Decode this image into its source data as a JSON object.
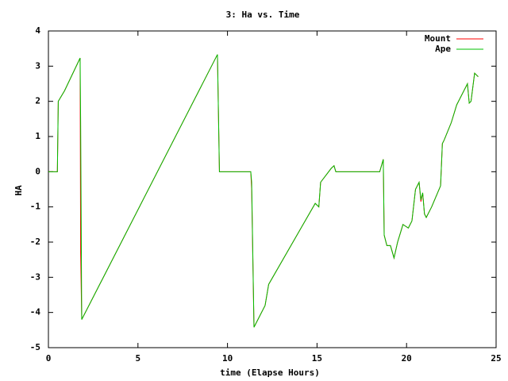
{
  "chart_data": {
    "type": "line",
    "title": "3: Ha vs. Time",
    "xlabel": "time (Elapse Hours)",
    "ylabel": "HA",
    "x": [
      0,
      0.5,
      0.55,
      0.9,
      1.77,
      1.8,
      1.86,
      9.44,
      9.55,
      11.3,
      11.35,
      11.48,
      12.1,
      12.3,
      14.9,
      15.1,
      15.2,
      15.8,
      15.95,
      16.05,
      18.5,
      18.7,
      18.75,
      18.9,
      19.1,
      19.3,
      19.5,
      19.8,
      20.1,
      20.3,
      20.5,
      20.7,
      20.8,
      20.9,
      21.0,
      21.1,
      21.4,
      21.9,
      22.0,
      22.1,
      22.5,
      22.8,
      23.4,
      23.5,
      23.6,
      23.8,
      24.0
    ],
    "series": [
      {
        "name": "Mount",
        "color": "#ff0000",
        "values": [
          0,
          0,
          2.0,
          2.3,
          3.23,
          -2.3,
          -4.2,
          3.33,
          0,
          0,
          -0.5,
          -4.42,
          -3.8,
          -3.2,
          -0.9,
          -1.0,
          -0.3,
          0.1,
          0.17,
          0,
          0,
          0.35,
          -1.8,
          -2.1,
          -2.1,
          -2.45,
          -2.0,
          -1.5,
          -1.6,
          -1.4,
          -0.5,
          -0.3,
          -0.85,
          -0.6,
          -1.2,
          -1.3,
          -1.0,
          -0.4,
          0.8,
          0.9,
          1.4,
          1.9,
          2.5,
          1.95,
          2.0,
          2.8,
          2.7
        ]
      },
      {
        "name": "Ape",
        "color": "#00c000",
        "values": [
          0,
          0,
          2.0,
          2.3,
          3.23,
          1.4,
          -4.2,
          3.33,
          0,
          0,
          -0.3,
          -4.42,
          -3.8,
          -3.2,
          -0.9,
          -1.0,
          -0.3,
          0.1,
          0.17,
          0,
          0,
          0.35,
          -1.8,
          -2.1,
          -2.1,
          -2.45,
          -2.0,
          -1.5,
          -1.6,
          -1.4,
          -0.5,
          -0.3,
          -0.8,
          -0.6,
          -1.2,
          -1.3,
          -1.0,
          -0.4,
          0.8,
          0.9,
          1.4,
          1.9,
          2.5,
          1.95,
          2.0,
          2.8,
          2.7
        ]
      }
    ],
    "xlim": [
      0,
      25
    ],
    "xticks": [
      0,
      5,
      10,
      15,
      20,
      25
    ],
    "ylim": [
      -5,
      4
    ],
    "yticks": [
      -5,
      -4,
      -3,
      -2,
      -1,
      0,
      1,
      2,
      3,
      4
    ],
    "grid": false,
    "legend": "top-right"
  }
}
